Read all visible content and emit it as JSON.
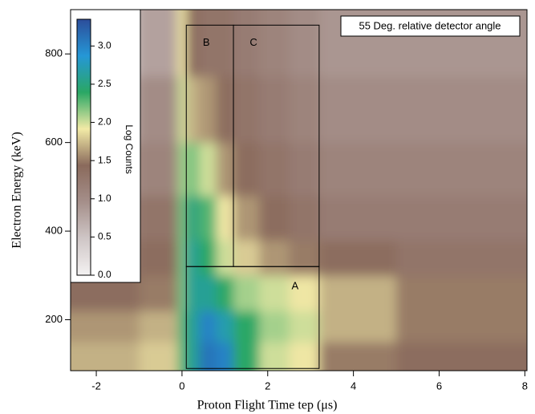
{
  "chart_data": {
    "type": "heatmap",
    "xlabel": "Proton Flight Time tep (μs)",
    "ylabel": "Electron Energy  (keV)",
    "xlim": [
      -2.6,
      8.05
    ],
    "ylim": [
      85,
      900
    ],
    "xticks": [
      -2,
      0,
      2,
      4,
      6,
      8
    ],
    "yticks": [
      200,
      400,
      600,
      800
    ],
    "x_edges": [
      -2.6,
      -1,
      -0.1,
      0.1,
      0.4,
      0.8,
      1.2,
      1.8,
      2.5,
      3.2,
      5,
      8.05
    ],
    "y_edges": [
      85,
      150,
      220,
      300,
      380,
      480,
      600,
      750,
      900
    ],
    "z": [
      [
        1.7,
        1.8,
        2.3,
        2.6,
        3.1,
        3.0,
        2.4,
        2.0,
        1.9,
        1.5,
        1.4
      ],
      [
        1.6,
        1.7,
        2.3,
        2.6,
        3.0,
        2.7,
        2.4,
        2.1,
        2.0,
        1.7,
        1.5
      ],
      [
        1.4,
        1.5,
        2.2,
        2.6,
        2.6,
        2.4,
        2.1,
        2.0,
        1.9,
        1.7,
        1.5
      ],
      [
        1.3,
        1.4,
        2.2,
        2.6,
        2.4,
        2.0,
        1.8,
        1.6,
        1.5,
        1.4,
        1.3
      ],
      [
        1.2,
        1.3,
        2.2,
        2.5,
        2.3,
        1.9,
        1.6,
        1.4,
        1.3,
        1.2,
        1.2
      ],
      [
        1.0,
        1.1,
        2.1,
        2.2,
        2.0,
        1.6,
        1.4,
        1.3,
        1.2,
        1.1,
        1.1
      ],
      [
        0.8,
        1.0,
        2.0,
        1.7,
        1.6,
        1.4,
        1.3,
        1.2,
        1.1,
        1.0,
        1.0
      ],
      [
        0.6,
        0.8,
        1.9,
        1.4,
        1.3,
        1.3,
        1.2,
        1.1,
        1.0,
        0.9,
        0.9
      ]
    ],
    "colorbar_label": "Log Counts",
    "zlim": [
      0,
      3.35
    ],
    "zticks": [
      {
        "value": 0,
        "label": "0.0"
      },
      0.5,
      {
        "value": 1,
        "label": "1.0"
      },
      1.5,
      {
        "value": 2,
        "label": "2.0"
      },
      2.5,
      {
        "value": 3,
        "label": "3.0"
      }
    ],
    "colors": [
      "#f4f2f2",
      "#cfc6c6",
      "#a58f8a",
      "#8a6a5c",
      "#f2eaa6",
      "#2aa764",
      "#2597d6",
      "#2c4d9a"
    ],
    "annotation": "55 Deg. relative detector angle",
    "regions": [
      {
        "label": "A",
        "x": [
          0.1,
          3.2
        ],
        "y": [
          90,
          320
        ]
      },
      {
        "label": "B",
        "x": [
          0.1,
          1.2
        ],
        "y": [
          320,
          865
        ]
      },
      {
        "label": "C",
        "x": [
          1.2,
          3.2
        ],
        "y": [
          320,
          865
        ]
      }
    ]
  }
}
